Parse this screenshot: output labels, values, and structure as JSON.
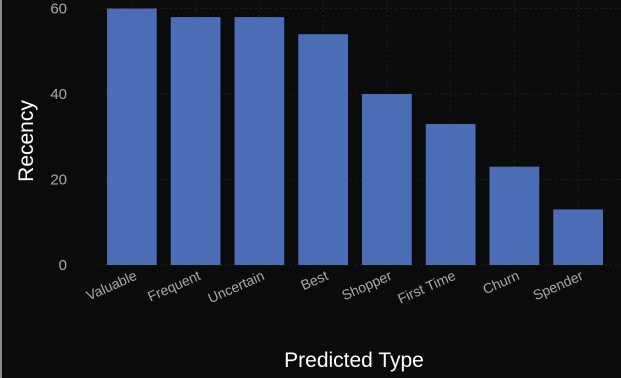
{
  "chart_data": {
    "type": "bar",
    "categories": [
      "Valuable",
      "Frequent",
      "Uncertain",
      "Best",
      "Shopper",
      "First Time",
      "Churn",
      "Spender"
    ],
    "values": [
      60,
      58,
      58,
      54,
      40,
      33,
      23,
      13
    ],
    "xlabel": "Predicted Type",
    "ylabel": "Recency",
    "ylim": [
      0,
      62
    ],
    "yticks": [
      0,
      20,
      40,
      60
    ],
    "grid": true,
    "legend": false,
    "colors": {
      "bar": "#4a6db5",
      "background": "#0b0b0b",
      "text": "#ffffff",
      "tick": "#a9a9a9"
    }
  }
}
